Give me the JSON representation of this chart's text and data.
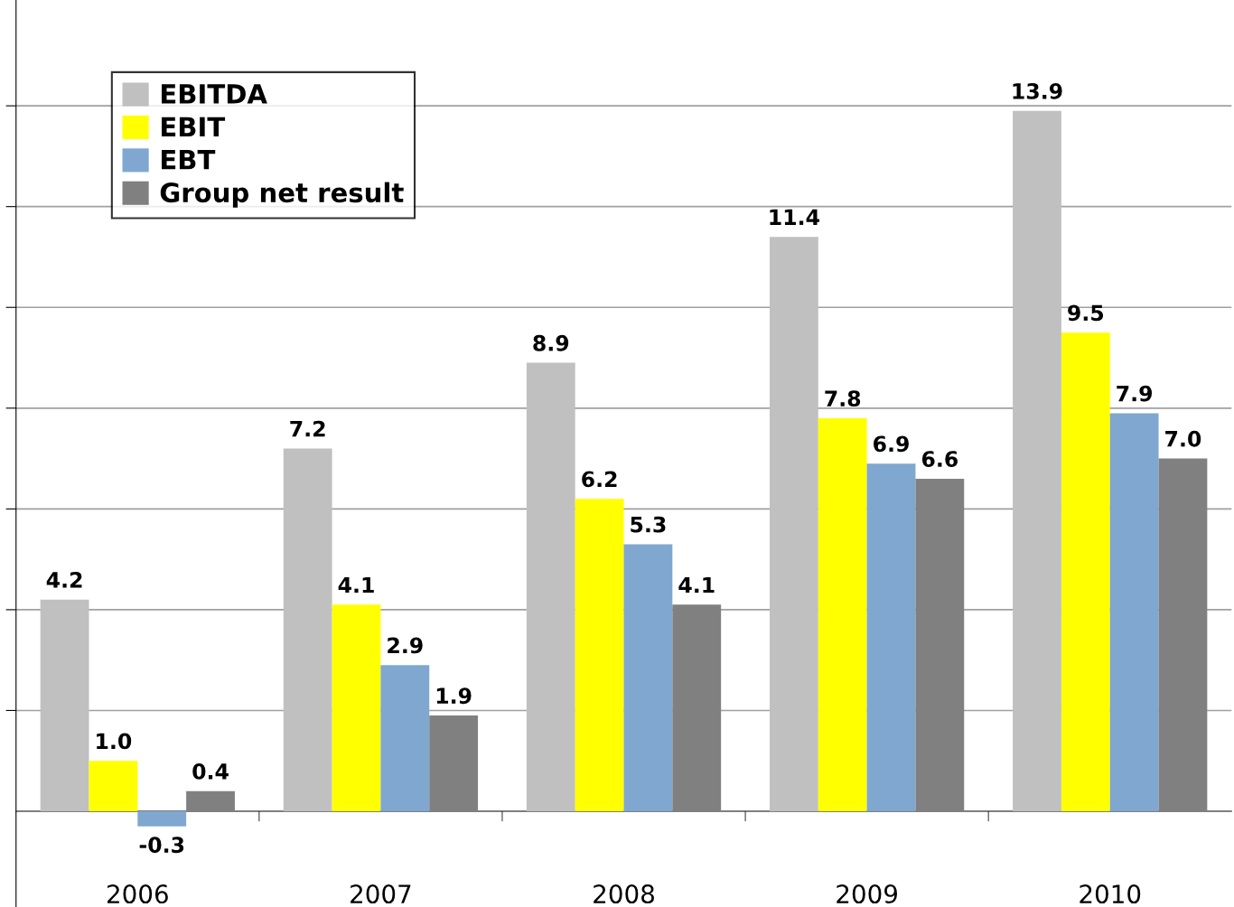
{
  "chart_data": {
    "type": "bar",
    "categories": [
      "2006",
      "2007",
      "2008",
      "2009",
      "2010"
    ],
    "series": [
      {
        "name": "EBITDA",
        "color": "#c0c0c0",
        "values": [
          4.2,
          7.2,
          8.9,
          11.4,
          13.9
        ],
        "value_labels": [
          "4.2",
          "7.2",
          "8.9",
          "11.4",
          "13.9"
        ]
      },
      {
        "name": "EBIT",
        "color": "#ffff00",
        "values": [
          1.0,
          4.1,
          6.2,
          7.8,
          9.5
        ],
        "value_labels": [
          "1.0",
          "4.1",
          "6.2",
          "7.8",
          "9.5"
        ]
      },
      {
        "name": "EBT",
        "color": "#7fa7d0",
        "values": [
          -0.3,
          2.9,
          5.3,
          6.9,
          7.9
        ],
        "value_labels": [
          "-0.3",
          "2.9",
          "5.3",
          "6.9",
          "7.9"
        ]
      },
      {
        "name": "Group net result",
        "color": "#808080",
        "values": [
          0.4,
          1.9,
          4.1,
          6.6,
          7.0
        ],
        "value_labels": [
          "0.4",
          "1.9",
          "4.1",
          "6.6",
          "7.0"
        ]
      }
    ],
    "ylim": [
      -1.9,
      16.1
    ],
    "yticks": [
      {
        "value": 2,
        "label": null
      },
      {
        "value": 4,
        "label": null
      },
      {
        "value": 6,
        "label": null
      },
      {
        "value": 8,
        "label": null
      },
      {
        "value": 10,
        "label": null
      },
      {
        "value": 12,
        "label": null
      },
      {
        "value": 14,
        "label": null
      }
    ],
    "tick_labels": "x",
    "grid": "y",
    "legend": "top left"
  }
}
